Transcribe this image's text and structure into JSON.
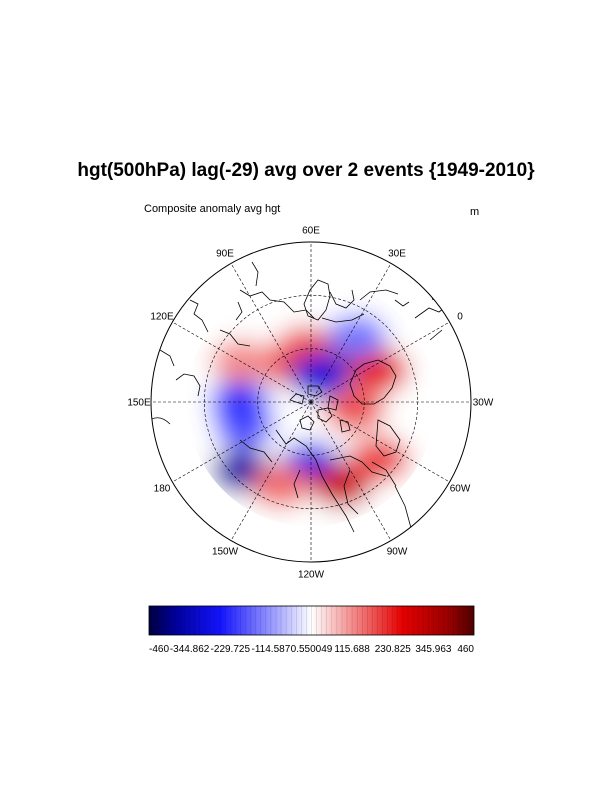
{
  "title": "hgt(500hPa) lag(-29) avg over 2 events {1949-2010}",
  "subtitle_left": "Composite anomaly avg hgt",
  "subtitle_right": "m",
  "longitude_labels": [
    "60E",
    "30E",
    "0",
    "30W",
    "60W",
    "90W",
    "120W",
    "150W",
    "180",
    "150E",
    "120E",
    "90E"
  ],
  "colorbar": {
    "min": -460,
    "max": 460,
    "tick_labels": [
      "-460",
      "-344.862",
      "-229.725",
      "-114.587",
      "0.550049",
      "115.688",
      "230.825",
      "345.963",
      "460"
    ],
    "colors": {
      "low": "#000040",
      "blue": "#1010ff",
      "white": "#ffffff",
      "red": "#e00000",
      "high": "#500000"
    }
  },
  "anomaly_centers": [
    {
      "lon": 20,
      "lat": 57,
      "value": 380
    },
    {
      "lon": -5,
      "lat": 48,
      "value": 260
    },
    {
      "lon": 65,
      "lat": 60,
      "value": 200
    },
    {
      "lon": 90,
      "lat": 65,
      "value": 180
    },
    {
      "lon": 40,
      "lat": 75,
      "value": -300
    },
    {
      "lon": 25,
      "lat": 45,
      "value": -150
    },
    {
      "lon": 150,
      "lat": 50,
      "value": -260
    },
    {
      "lon": 170,
      "lat": 50,
      "value": -200
    },
    {
      "lon": -165,
      "lat": 35,
      "value": -360
    },
    {
      "lon": -120,
      "lat": 55,
      "value": -280
    },
    {
      "lon": -100,
      "lat": 40,
      "value": 300
    },
    {
      "lon": -70,
      "lat": 40,
      "value": 200
    },
    {
      "lon": -40,
      "lat": 65,
      "value": 180
    },
    {
      "lon": 120,
      "lat": 45,
      "value": 120
    },
    {
      "lon": -140,
      "lat": 40,
      "value": 150
    }
  ]
}
